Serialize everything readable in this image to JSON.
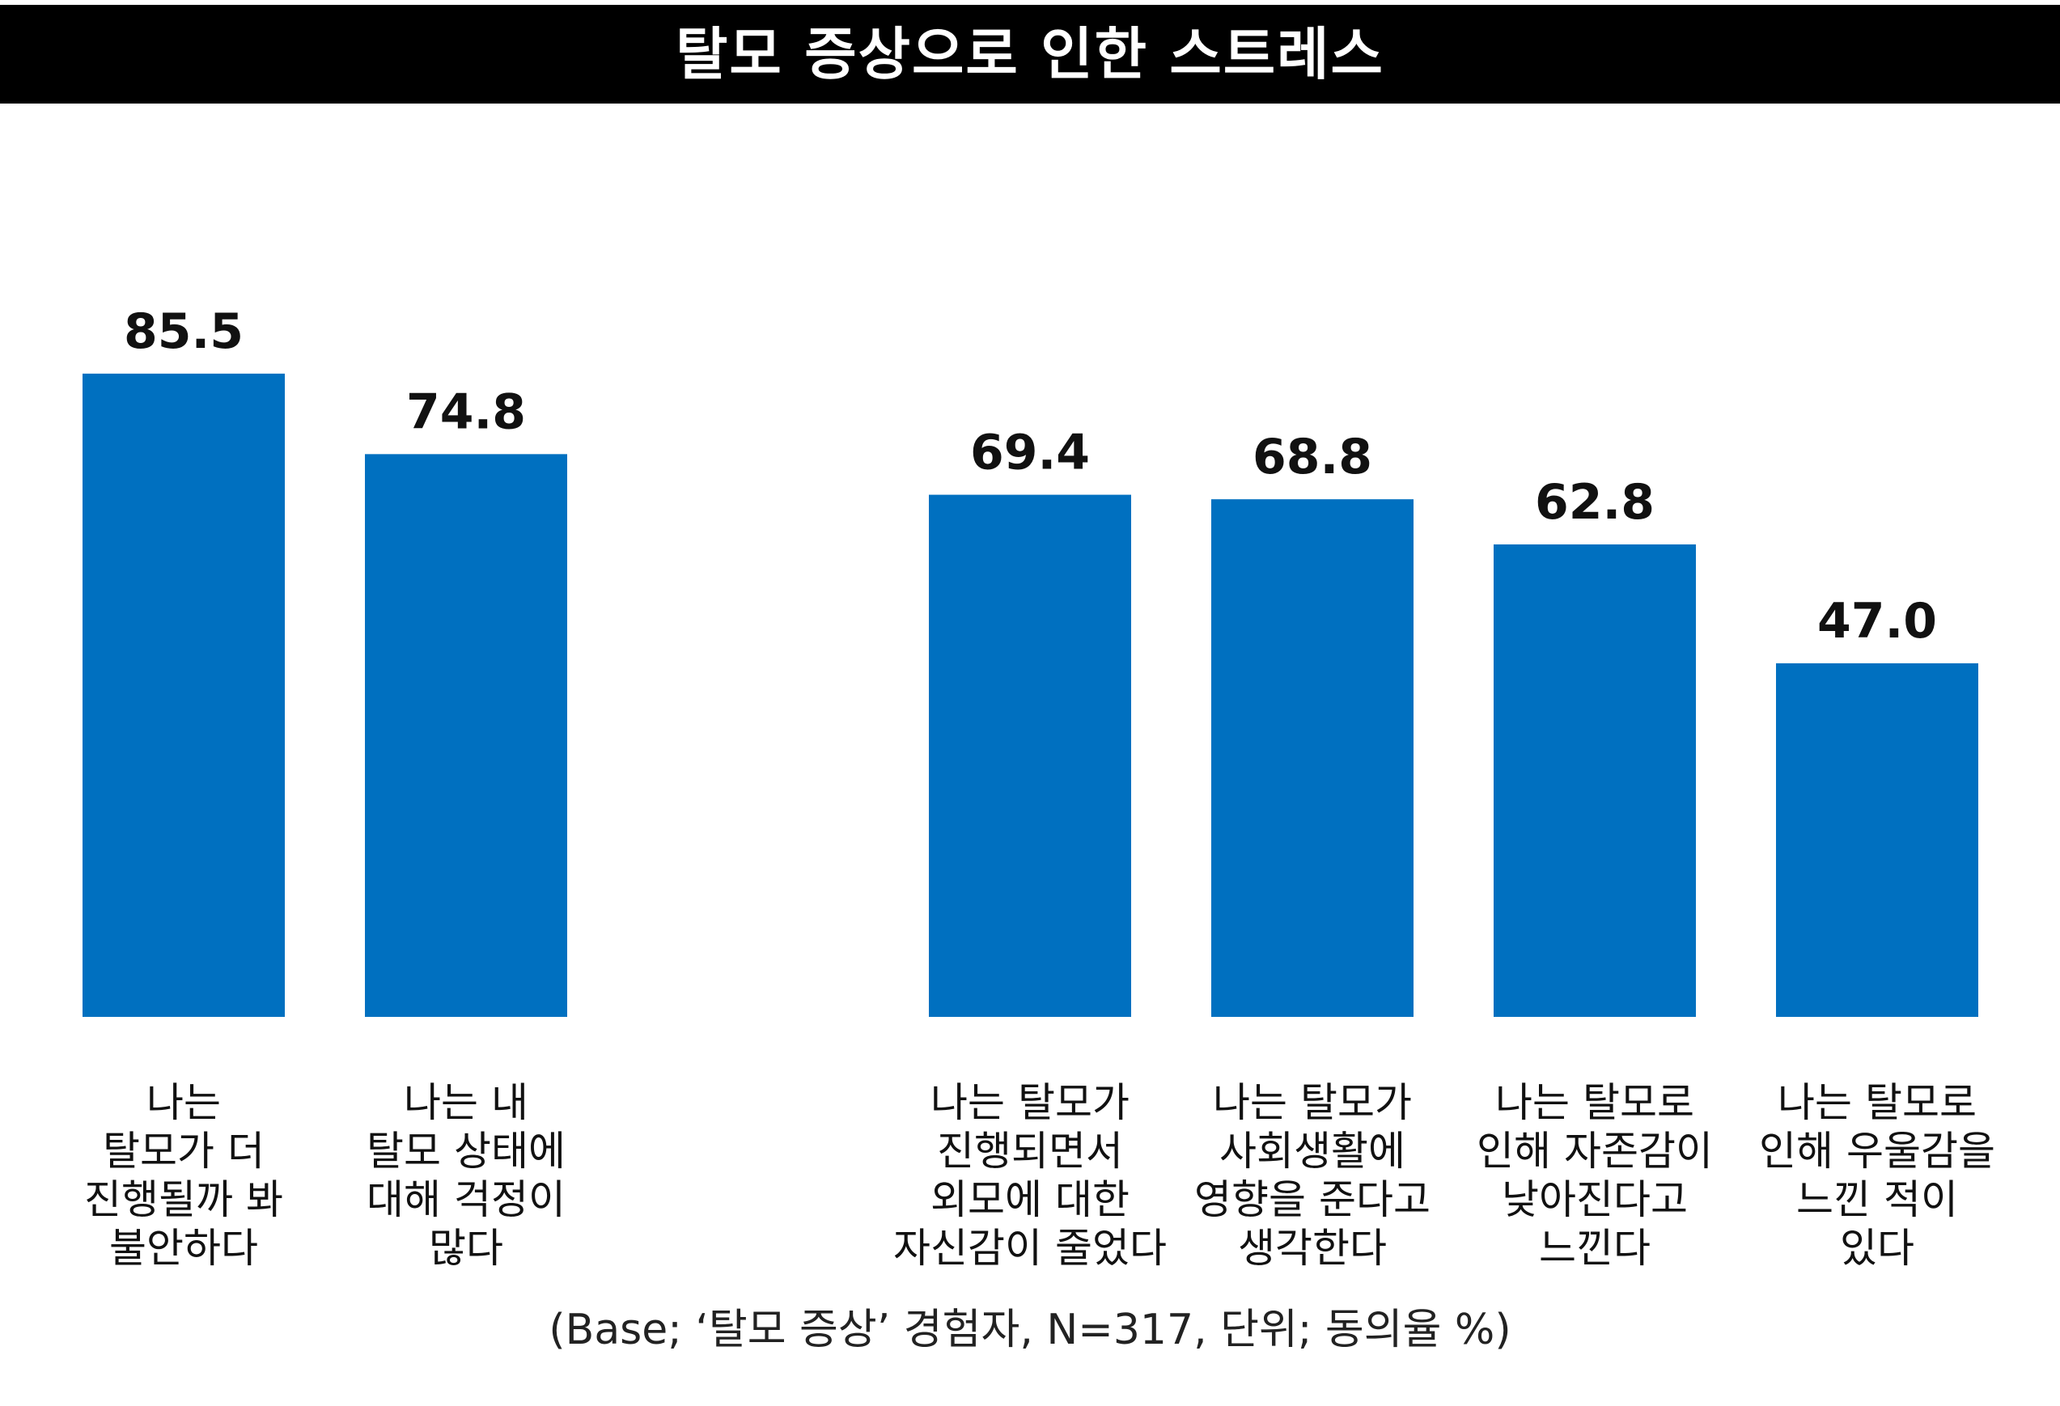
{
  "chart_data": {
    "type": "bar",
    "title": "탈모 증상으로 인한 스트레스",
    "categories": [
      [
        "나는",
        "탈모가 더",
        "진행될까 봐",
        "불안하다"
      ],
      [
        "나는 내",
        "탈모 상태에",
        "대해 걱정이",
        "많다"
      ],
      [
        "나는 탈모가",
        "진행되면서",
        "외모에 대한",
        "자신감이 줄었다"
      ],
      [
        "나는 탈모가",
        "사회생활에",
        "영향을 준다고",
        "생각한다"
      ],
      [
        "나는 탈모로",
        "인해 자존감이",
        "낮아진다고",
        "느낀다"
      ],
      [
        "나는 탈모로",
        "인해 우울감을",
        "느낀 적이",
        "있다"
      ]
    ],
    "values": [
      85.5,
      74.8,
      69.4,
      68.8,
      62.8,
      47.0
    ],
    "value_labels": [
      "85.5",
      "74.8",
      "69.4",
      "68.8",
      "62.8",
      "47.0"
    ],
    "groups": [
      [
        0,
        1
      ],
      [
        2,
        3,
        4,
        5
      ]
    ],
    "ylim": [
      0,
      100
    ],
    "grid": false,
    "legend": "none",
    "bar_color": "#0070C0",
    "footnote": "(Base; ‘탈모 증상’ 경험자, N=317, 단위; 동의율 %)"
  }
}
